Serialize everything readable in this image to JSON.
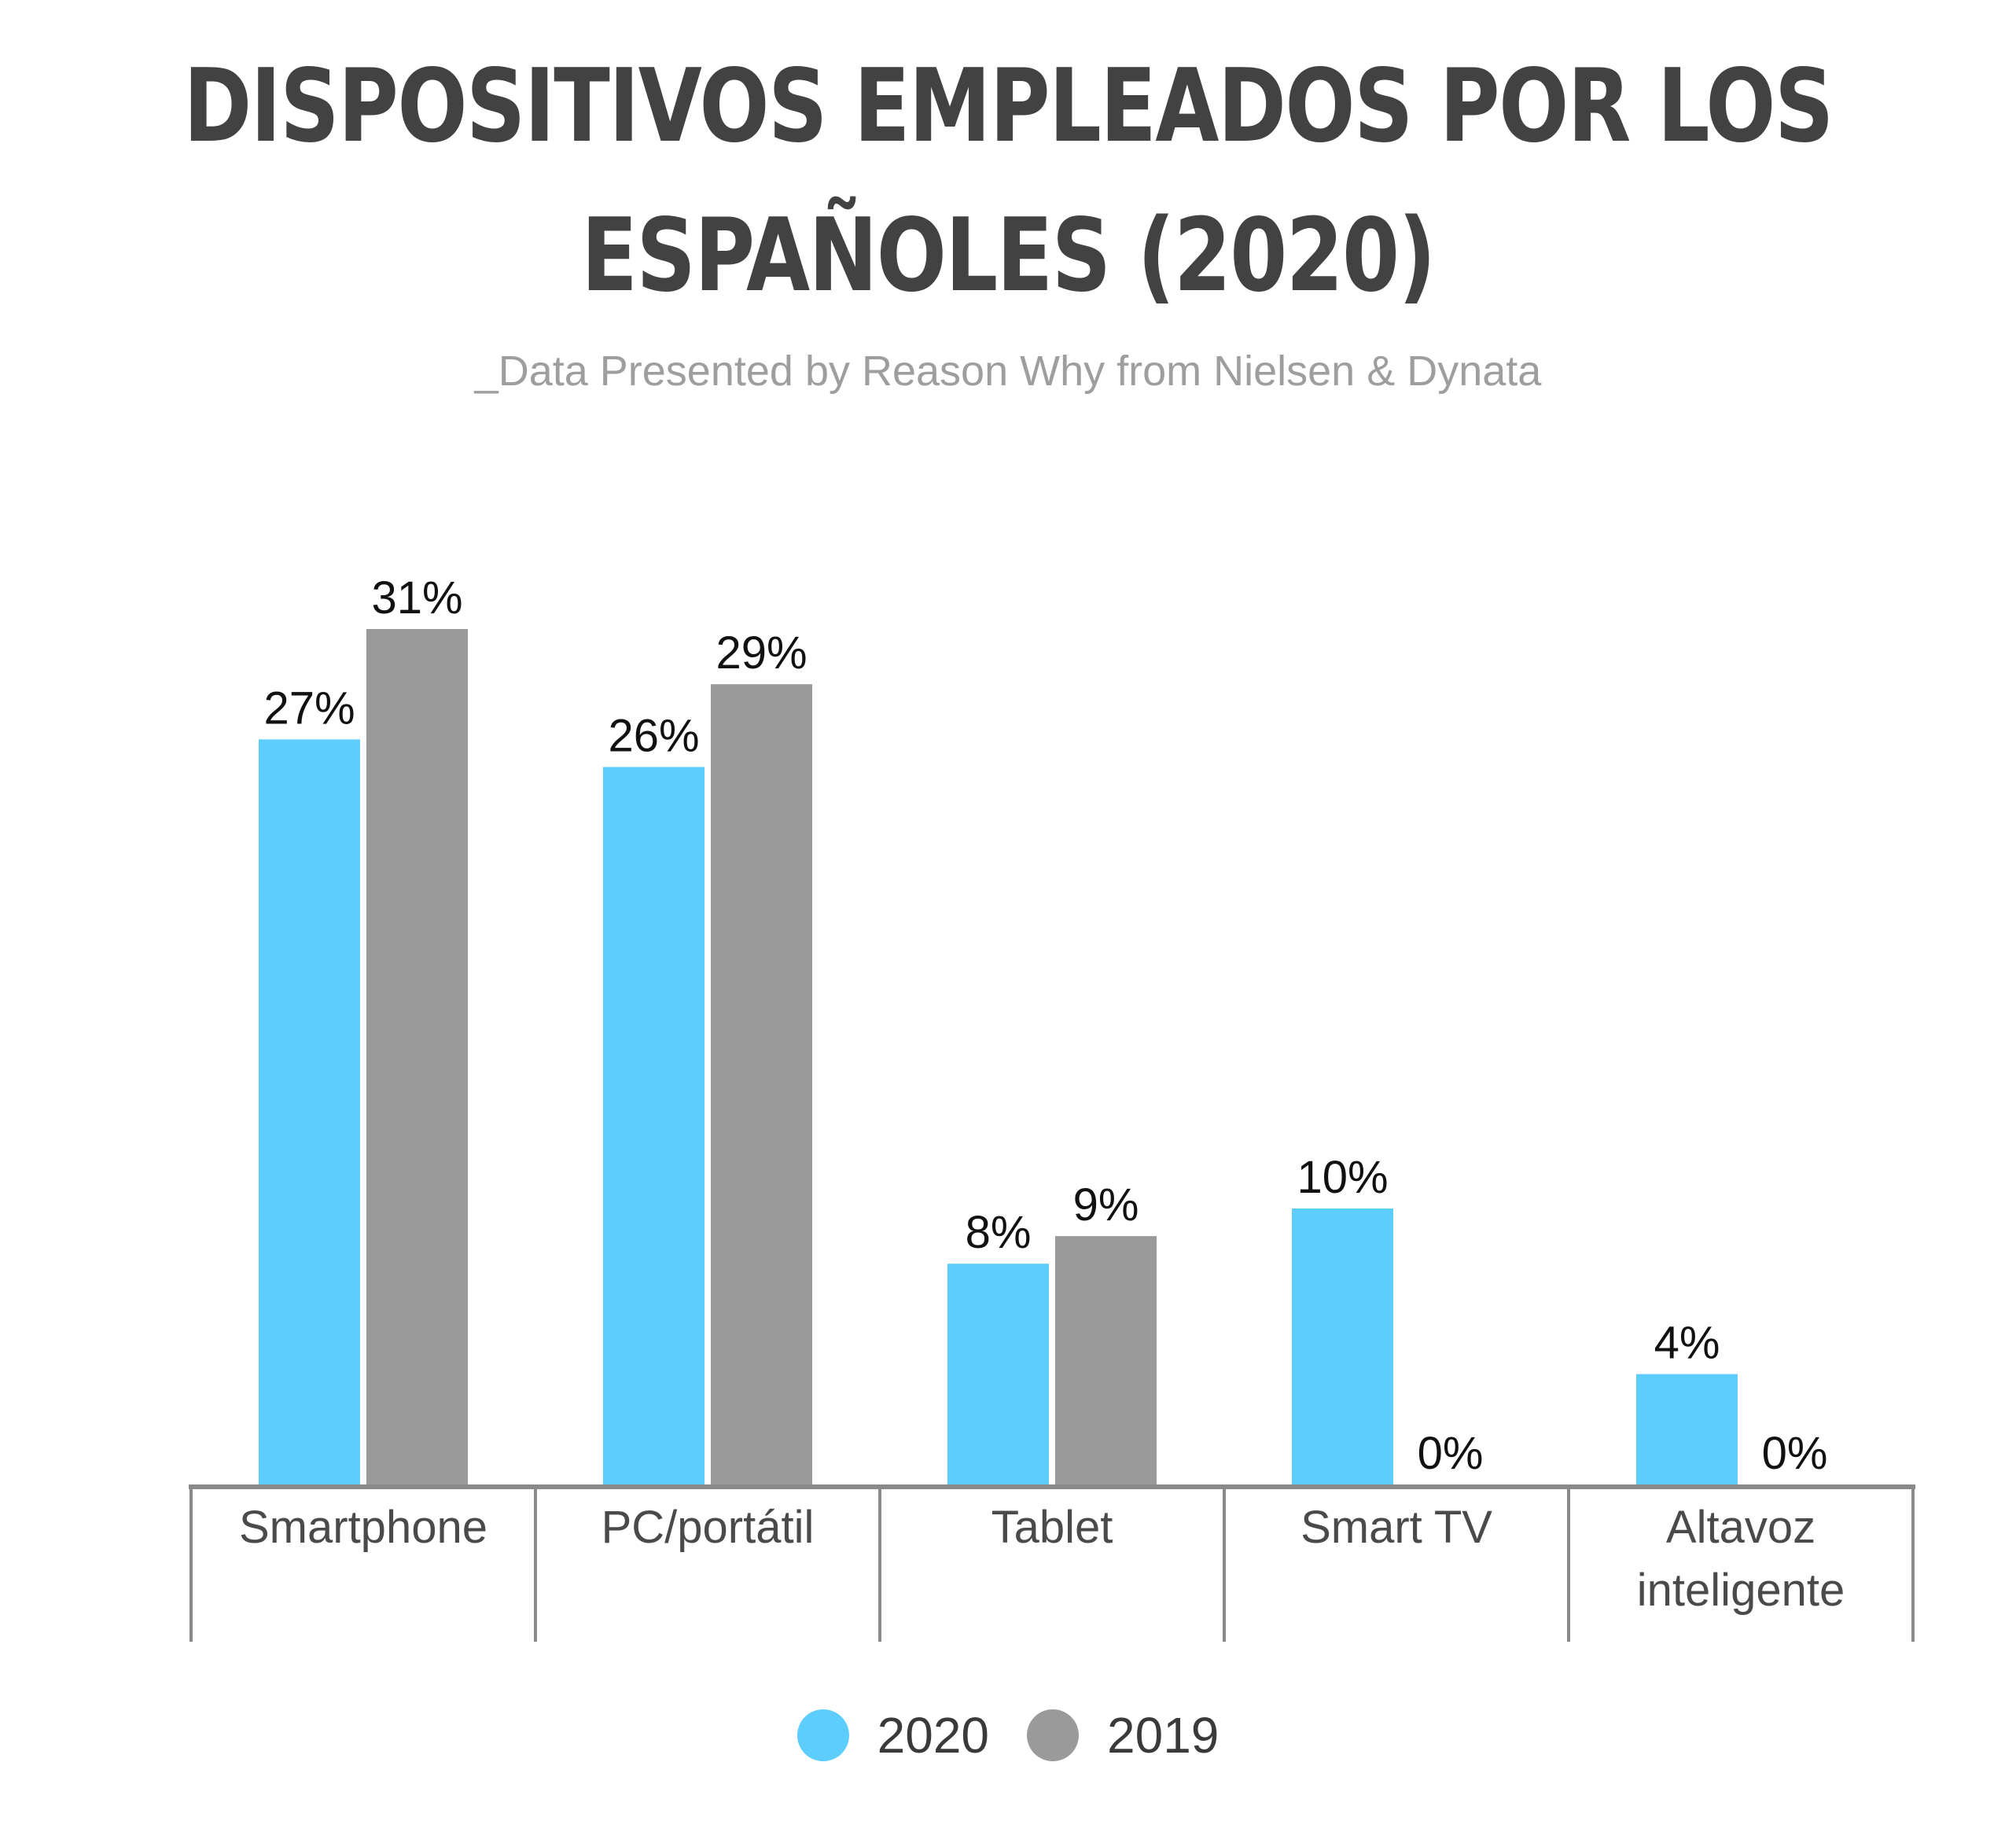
{
  "header": {
    "title_line1": "DISPOSITIVOS EMPLEADOS POR LOS",
    "title_line2": "ESPAÑOLES  (2020)",
    "subtitle": "_Data Presented by Reason Why from Nielsen & Dynata"
  },
  "colors": {
    "series_2020": "#5ccdfc",
    "series_2019": "#9a9a9a",
    "axis": "#8a8a8a",
    "label_text": "#111111",
    "category_text": "#4a4a4a"
  },
  "legend": {
    "items": [
      {
        "label": "2020",
        "color": "#5ccdfc"
      },
      {
        "label": "2019",
        "color": "#9a9a9a"
      }
    ],
    "placement": "bottom-center"
  },
  "chart_data": {
    "type": "bar",
    "title": "DISPOSITIVOS EMPLEADOS POR LOS ESPAÑOLES  (2020)",
    "subtitle": "_Data Presented by Reason Why from Nielsen & Dynata",
    "categories": [
      [
        "Smartphone"
      ],
      [
        "PC/portátil"
      ],
      [
        "Tablet"
      ],
      [
        "Smart TV"
      ],
      [
        "Altavoz",
        "inteligente"
      ]
    ],
    "series": [
      {
        "name": "2020",
        "values": [
          27,
          26,
          8,
          10,
          4
        ],
        "labels": [
          "27%",
          "26%",
          "8%",
          "10%",
          "4%"
        ]
      },
      {
        "name": "2019",
        "values": [
          31,
          29,
          9,
          0,
          0
        ],
        "labels": [
          "31%",
          "29%",
          "9%",
          "0%",
          "0%"
        ]
      }
    ],
    "xlabel": "",
    "ylabel": "",
    "ylim": [
      0,
      31
    ],
    "grid": false,
    "legend": "bottom-center"
  }
}
